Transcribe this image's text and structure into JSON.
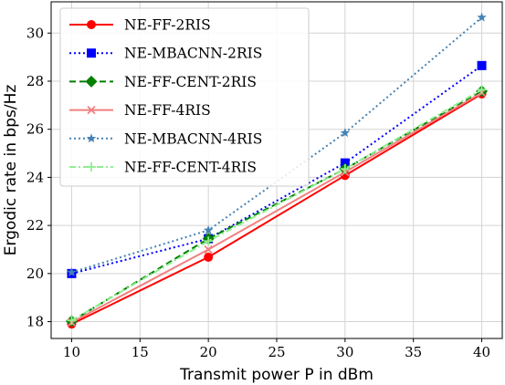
{
  "chart_data": {
    "type": "line",
    "title": "",
    "xlabel": "Transmit power P in dBm",
    "ylabel": "Ergodic rate in bps/Hz",
    "xlim": [
      8.5,
      41.5
    ],
    "ylim": [
      17.3,
      31.3
    ],
    "xticks": [
      10,
      15,
      20,
      25,
      30,
      35,
      40
    ],
    "yticks": [
      18,
      20,
      22,
      24,
      26,
      28,
      30
    ],
    "grid": true,
    "legend_position": "upper-left",
    "x": [
      10,
      20,
      30,
      40
    ],
    "series": [
      {
        "name": "NE-FF-2RIS",
        "values": [
          17.9,
          20.68,
          24.08,
          27.47
        ],
        "color": "#ff0000",
        "dash": "solid",
        "marker": "circle"
      },
      {
        "name": "NE-MBACNN-2RIS",
        "values": [
          20.0,
          21.45,
          24.6,
          28.65
        ],
        "color": "#0000ff",
        "dash": "dotted",
        "marker": "square"
      },
      {
        "name": "NE-FF-CENT-2RIS",
        "values": [
          18.02,
          21.45,
          24.35,
          27.58
        ],
        "color": "#008000",
        "dash": "dashed",
        "marker": "diamond"
      },
      {
        "name": "NE-FF-4RIS",
        "values": [
          17.97,
          21.0,
          24.22,
          27.52
        ],
        "color": "#f08080",
        "dash": "solid",
        "marker": "x"
      },
      {
        "name": "NE-MBACNN-4RIS",
        "values": [
          20.05,
          21.8,
          25.85,
          30.65
        ],
        "color": "#4682b4",
        "dash": "dotted",
        "marker": "star"
      },
      {
        "name": "NE-FF-CENT-4RIS",
        "values": [
          18.05,
          21.35,
          24.35,
          27.65
        ],
        "color": "#90ee90",
        "dash": "dashdot",
        "marker": "plus"
      }
    ]
  }
}
